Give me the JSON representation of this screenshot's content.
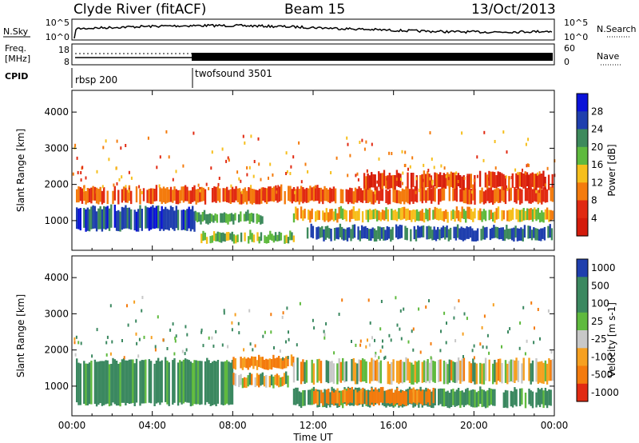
{
  "header": {
    "station": "Clyde River (fitACF)",
    "beam": "Beam 15",
    "date": "13/Oct/2013"
  },
  "noise_panel": {
    "left_label": "N.Sky",
    "right_label": "N.Search",
    "left_ticks": [
      "10^5",
      "10^0"
    ],
    "right_ticks": [
      "10^5",
      "10^0"
    ]
  },
  "freq_panel": {
    "left_label_line1": "Freq.",
    "left_label_line2": "[MHz]",
    "left_ticks": [
      "18",
      "8"
    ],
    "right_ticks": [
      "60",
      "0"
    ],
    "right_label": "Nave"
  },
  "cpid_panel": {
    "label": "CPID",
    "programs": [
      {
        "name": "rbsp 200",
        "start_hour": 0
      },
      {
        "name": "twofsound 3501",
        "start_hour": 6
      }
    ]
  },
  "time_axis": {
    "label": "Time UT",
    "ticks": [
      "00:00",
      "04:00",
      "08:00",
      "12:00",
      "16:00",
      "20:00",
      "00:00"
    ],
    "range_hours": [
      0,
      24
    ]
  },
  "chart_data": [
    {
      "type": "heatmap",
      "parameter": "power",
      "ylabel": "Slant Range [km]",
      "yticks": [
        "1000",
        "2000",
        "3000",
        "4000"
      ],
      "ylim": [
        180,
        4600
      ],
      "colorbar_label": "Power [dB]",
      "colorbar_ticks": [
        "4",
        "8",
        "12",
        "16",
        "20",
        "24",
        "28"
      ],
      "colorbar_colors": [
        "#0a12d8",
        "#1f3fae",
        "#3d8a5c",
        "#5fba3e",
        "#f6bf1c",
        "#f47b0d",
        "#e12a12",
        "#d41b0b"
      ],
      "bands": [
        {
          "h": [
            0.2,
            6.1
          ],
          "range_lo": 750,
          "range_hi": 1350,
          "value": 26
        },
        {
          "h": [
            6.1,
            9.5
          ],
          "range_lo": 950,
          "range_hi": 1200,
          "value": 20
        },
        {
          "h": [
            6.4,
            11.0
          ],
          "range_lo": 420,
          "range_hi": 650,
          "value": 18
        },
        {
          "h": [
            11.5,
            23.9
          ],
          "range_lo": 480,
          "range_hi": 820,
          "value": 24
        },
        {
          "h": [
            11.0,
            23.9
          ],
          "range_lo": 1000,
          "range_hi": 1300,
          "value": 14
        },
        {
          "h": [
            0.2,
            23.9
          ],
          "range_lo": 1500,
          "range_hi": 1900,
          "value": 8
        },
        {
          "h": [
            14.5,
            23.9
          ],
          "range_lo": 1900,
          "range_hi": 2300,
          "value": 6
        }
      ]
    },
    {
      "type": "heatmap",
      "parameter": "velocity",
      "ylabel": "Slant Range [km]",
      "yticks": [
        "1000",
        "2000",
        "3000",
        "4000"
      ],
      "ylim": [
        180,
        4600
      ],
      "colorbar_label": "Velocity [m s-1]",
      "colorbar_ticks": [
        "1000",
        "500",
        "100",
        "25",
        "-25",
        "-100",
        "-500",
        "-1000"
      ],
      "colorbar_colors": [
        "#1f3fae",
        "#3b8860",
        "#3b8860",
        "#5fba3e",
        "#c8c8c8",
        "#f6a020",
        "#f47b0d",
        "#e12a12"
      ],
      "bands": [
        {
          "h": [
            0.2,
            8.0
          ],
          "range_lo": 500,
          "range_hi": 1700,
          "value": 200
        },
        {
          "h": [
            8.0,
            11.0
          ],
          "range_lo": 1000,
          "range_hi": 1300,
          "value": 0
        },
        {
          "h": [
            8.0,
            11.0
          ],
          "range_lo": 1500,
          "range_hi": 1800,
          "value": -200
        },
        {
          "h": [
            11.0,
            23.9
          ],
          "range_lo": 1100,
          "range_hi": 1700,
          "value": 0
        },
        {
          "h": [
            11.0,
            23.9
          ],
          "range_lo": 450,
          "range_hi": 900,
          "value": 200
        },
        {
          "h": [
            12.0,
            18.0
          ],
          "range_lo": 500,
          "range_hi": 900,
          "value": -200
        }
      ]
    }
  ]
}
